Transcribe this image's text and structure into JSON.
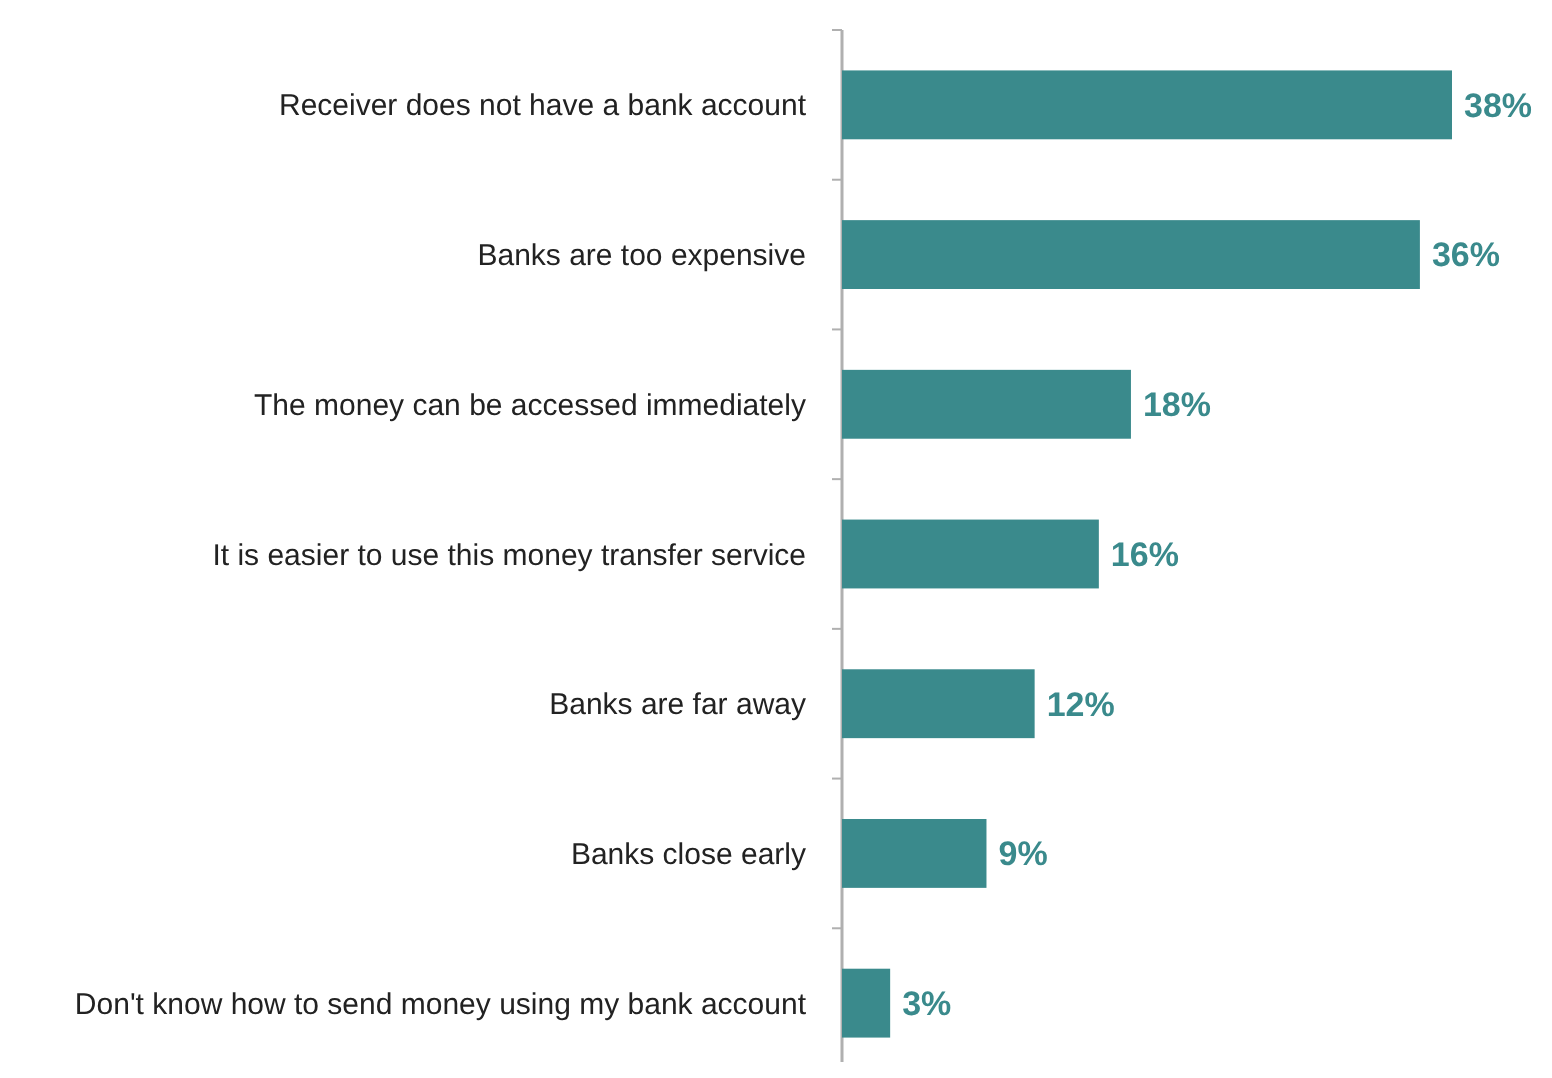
{
  "chart_data": {
    "type": "bar",
    "orientation": "horizontal",
    "categories": [
      "Receiver does not have a bank account",
      "Banks are too expensive",
      "The money can be accessed immediately",
      "It is easier to use this money transfer service",
      "Banks are far away",
      "Banks close early",
      "Don't know how to send money using my bank account"
    ],
    "values": [
      38,
      36,
      18,
      16,
      12,
      9,
      3
    ],
    "value_labels": [
      "38%",
      "36%",
      "18%",
      "16%",
      "12%",
      "9%",
      "3%"
    ],
    "color": "#3a8a8c"
  }
}
